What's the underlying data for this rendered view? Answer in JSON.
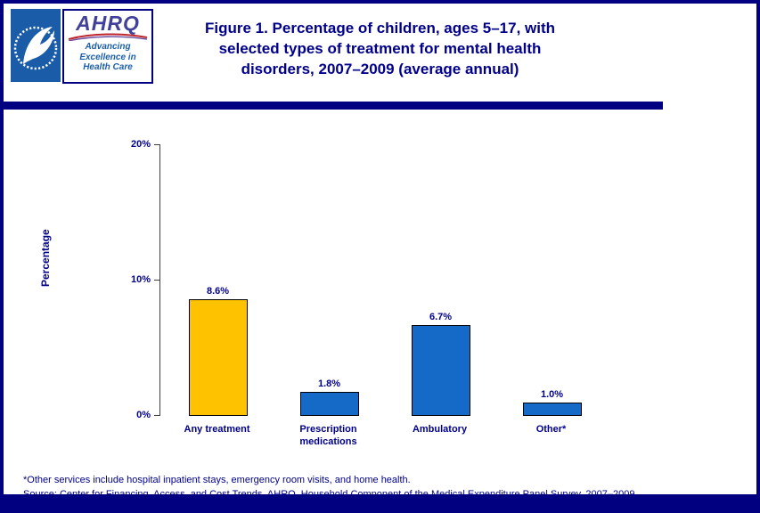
{
  "header": {
    "title_lines": [
      "Figure 1. Percentage of children, ages 5–17, with",
      "selected types of treatment for mental health",
      "disorders, 2007–2009 (average annual)"
    ],
    "ahrq": {
      "acronym": "AHRQ",
      "tagline_lines": [
        "Advancing",
        "Excellence in",
        "Health Care"
      ]
    }
  },
  "chart_data": {
    "type": "bar",
    "title": "Percentage of children, ages 5–17, with selected types of treatment for mental health disorders, 2007–2009 (average annual)",
    "categories": [
      "Any treatment",
      "Prescription medications",
      "Ambulatory",
      "Other*"
    ],
    "values": [
      8.6,
      1.8,
      6.7,
      1.0
    ],
    "value_labels": [
      "8.6%",
      "1.8%",
      "6.7%",
      "1.0%"
    ],
    "bar_colors": [
      "#FFC200",
      "#1569C7",
      "#1569C7",
      "#1569C7"
    ],
    "xlabel": "",
    "ylabel": "Percentage",
    "ylim": [
      0,
      20
    ],
    "yticks": [
      "0%",
      "10%",
      "20%"
    ],
    "grid": false,
    "legend": "none"
  },
  "footnotes": {
    "note": "*Other services include hospital inpatient stays, emergency room visits, and home health.",
    "source": "Source: Center for Financing, Access, and Cost Trends, AHRQ, Household Component of the Medical Expenditure Panel Survey, 2007–2009"
  },
  "colors": {
    "navy": "#000080",
    "text_navy": "#00008B",
    "bar_blue": "#1569C7",
    "bar_gold": "#FFC200",
    "hhs_blue": "#1A5CA8"
  }
}
